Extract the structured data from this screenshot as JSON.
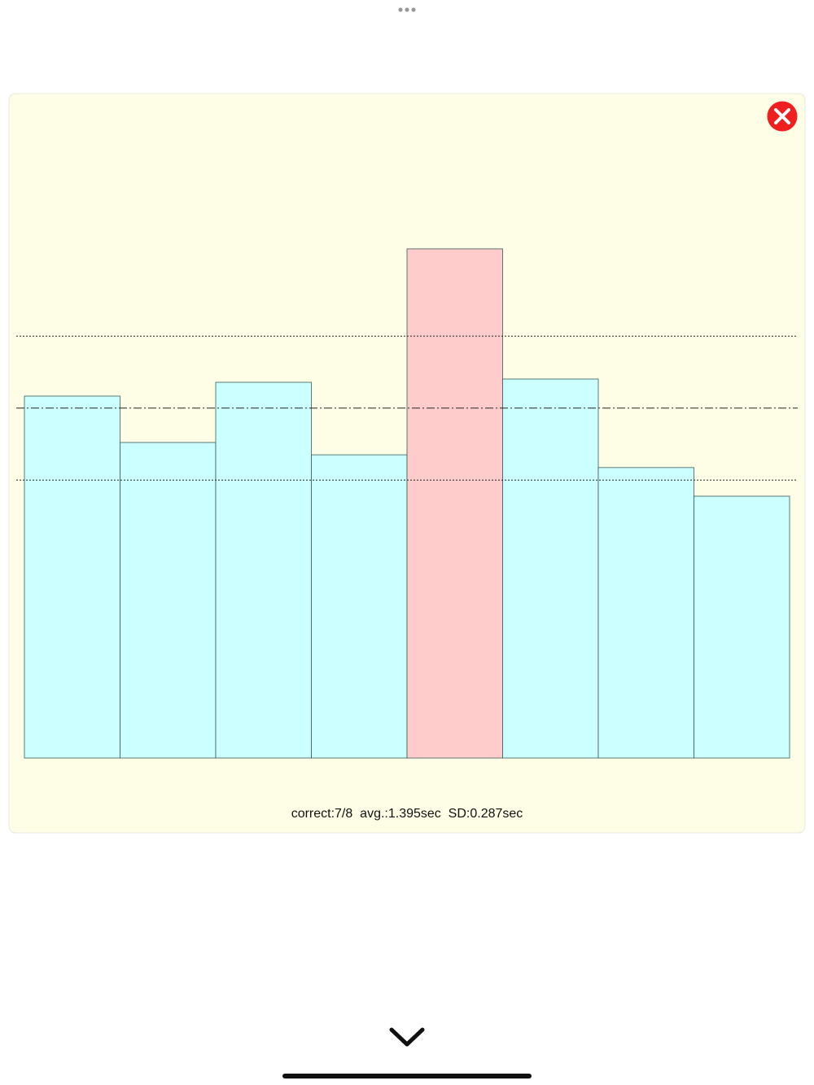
{
  "chart_data": {
    "type": "bar",
    "values": [
      1.443,
      1.258,
      1.498,
      1.209,
      2.03,
      1.511,
      1.158,
      1.044
    ],
    "colors": [
      "#ccffff",
      "#ccffff",
      "#ccffff",
      "#ccffff",
      "#ffcccc",
      "#ccffff",
      "#ccffff",
      "#ccffff"
    ],
    "ylim": [
      0,
      2.5
    ],
    "lines": [
      {
        "value": 1.108,
        "style": "dotted"
      },
      {
        "value": 1.395,
        "style": "dashdot"
      },
      {
        "value": 1.682,
        "style": "dotted"
      }
    ],
    "footer": "correct:7/8  avg.:1.395sec  SD:0.287sec"
  }
}
